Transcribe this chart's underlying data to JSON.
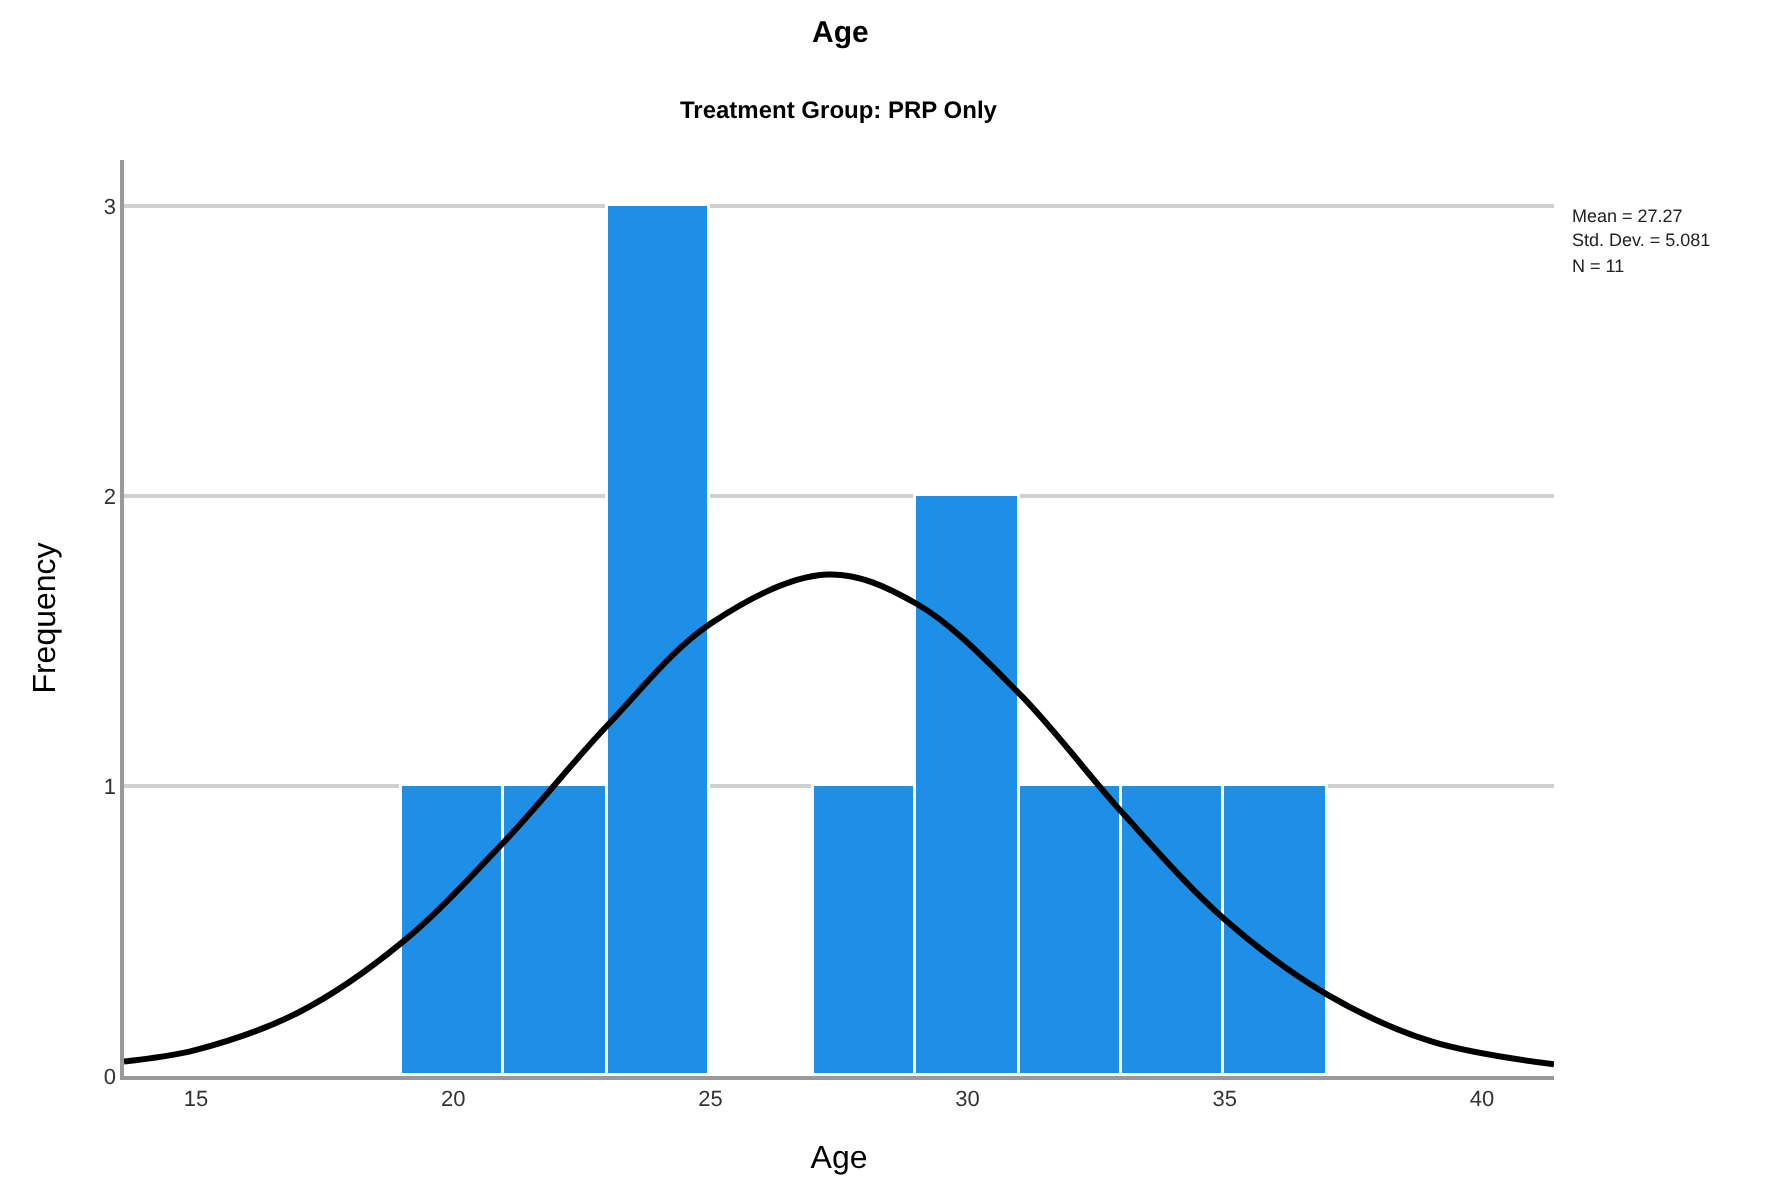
{
  "chart_data": {
    "type": "histogram",
    "title": "Age",
    "subtitle": "Treatment Group: PRP Only",
    "xlabel": "Age",
    "ylabel": "Frequency",
    "bins": [
      19,
      21,
      23,
      25,
      27,
      29,
      31,
      33,
      35,
      37
    ],
    "values": [
      1,
      1,
      3,
      0,
      1,
      2,
      1,
      1,
      1
    ],
    "color": "#1e8fe6",
    "series": [
      {
        "type": "line",
        "color": "#000000",
        "x": [
          13.6,
          15,
          17,
          19,
          21,
          23,
          25,
          27.27,
          29,
          31,
          33,
          35,
          37,
          39,
          41.4
        ],
        "values": [
          0.05,
          0.09,
          0.22,
          0.46,
          0.81,
          1.21,
          1.56,
          1.73,
          1.63,
          1.32,
          0.91,
          0.54,
          0.28,
          0.12,
          0.04
        ]
      }
    ],
    "xlim": [
      13.6,
      41.4
    ],
    "xticks": [
      15,
      20,
      25,
      30,
      35,
      40
    ],
    "ylim": [
      0,
      3.16
    ],
    "yticks": [
      0,
      1,
      2,
      3
    ],
    "grid": "y",
    "annotations": [
      "Mean = 27.27",
      "Std. Dev. = 5.081",
      "N = 11"
    ]
  }
}
